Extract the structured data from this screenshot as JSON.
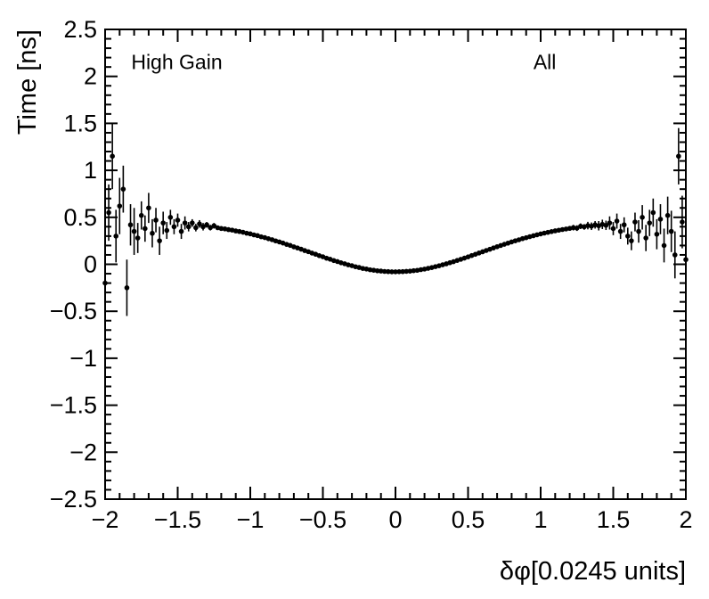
{
  "chart_data": {
    "type": "scatter",
    "title": "",
    "xlabel": "δφ[0.0245 units]",
    "ylabel": "Time [ns]",
    "xlim": [
      -2,
      2
    ],
    "ylim": [
      -2.5,
      2.5
    ],
    "grid": false,
    "legend": null,
    "marker_color": "#000000",
    "marker_style": "filled-circle-with-error-bars",
    "x_major_ticks": [
      -2,
      -1.5,
      -1,
      -0.5,
      0,
      0.5,
      1,
      1.5,
      2
    ],
    "x_tick_labels": [
      "−2",
      "−1.5",
      "−1",
      "−0.5",
      "0",
      "0.5",
      "1",
      "1.5",
      "2"
    ],
    "y_major_ticks": [
      -2.5,
      -2,
      -1.5,
      -1,
      -0.5,
      0,
      0.5,
      1,
      1.5,
      2,
      2.5
    ],
    "y_tick_labels": [
      "−2.5",
      "−2",
      "−1.5",
      "−1",
      "−0.5",
      "0",
      "0.5",
      "1",
      "1.5",
      "2",
      "2.5"
    ],
    "x_minor_step": 0.1,
    "y_minor_step": 0.1,
    "annotations": [
      {
        "text": "High Gain",
        "x": -1.82,
        "y": 2.08
      },
      {
        "text": "All",
        "x": 0.95,
        "y": 2.08
      }
    ],
    "points_format": [
      "x",
      "y",
      "yerr"
    ],
    "points": [
      [
        -2.0,
        -0.2,
        0.25
      ],
      [
        -1.975,
        0.55,
        0.3
      ],
      [
        -1.95,
        1.15,
        0.35
      ],
      [
        -1.925,
        0.3,
        0.28
      ],
      [
        -1.9,
        0.62,
        0.3
      ],
      [
        -1.875,
        0.8,
        0.25
      ],
      [
        -1.85,
        -0.25,
        0.3
      ],
      [
        -1.825,
        0.42,
        0.22
      ],
      [
        -1.8,
        0.35,
        0.25
      ],
      [
        -1.775,
        0.28,
        0.16
      ],
      [
        -1.75,
        0.52,
        0.15
      ],
      [
        -1.725,
        0.38,
        0.14
      ],
      [
        -1.7,
        0.6,
        0.16
      ],
      [
        -1.675,
        0.33,
        0.15
      ],
      [
        -1.65,
        0.47,
        0.13
      ],
      [
        -1.625,
        0.25,
        0.15
      ],
      [
        -1.6,
        0.44,
        0.12
      ],
      [
        -1.575,
        0.36,
        0.09
      ],
      [
        -1.55,
        0.5,
        0.08
      ],
      [
        -1.525,
        0.4,
        0.08
      ],
      [
        -1.5,
        0.47,
        0.07
      ],
      [
        -1.475,
        0.35,
        0.08
      ],
      [
        -1.45,
        0.44,
        0.07
      ],
      [
        -1.425,
        0.4,
        0.05
      ],
      [
        -1.4,
        0.44,
        0.04
      ],
      [
        -1.375,
        0.39,
        0.04
      ],
      [
        -1.35,
        0.43,
        0.04
      ],
      [
        -1.325,
        0.4,
        0.04
      ],
      [
        -1.3,
        0.42,
        0.03
      ],
      [
        -1.275,
        0.39,
        0.03
      ],
      [
        -1.25,
        0.41,
        0.03
      ],
      [
        -1.225,
        0.389,
        0.02
      ],
      [
        -1.2,
        0.381,
        0.02
      ],
      [
        -1.175,
        0.377,
        0.02
      ],
      [
        -1.15,
        0.369,
        0.02
      ],
      [
        -1.125,
        0.364,
        0.02
      ],
      [
        -1.1,
        0.355,
        0.02
      ],
      [
        -1.075,
        0.349,
        0.02
      ],
      [
        -1.05,
        0.341,
        0.02
      ],
      [
        -1.025,
        0.331,
        0.02
      ],
      [
        -1.0,
        0.324,
        0.02
      ],
      [
        -0.975,
        0.313,
        0.02
      ],
      [
        -0.95,
        0.305,
        0.02
      ],
      [
        -0.925,
        0.293,
        0.02
      ],
      [
        -0.9,
        0.284,
        0.02
      ],
      [
        -0.875,
        0.272,
        0.02
      ],
      [
        -0.85,
        0.262,
        0.02
      ],
      [
        -0.825,
        0.249,
        0.02
      ],
      [
        -0.8,
        0.238,
        0.02
      ],
      [
        -0.775,
        0.226,
        0.02
      ],
      [
        -0.75,
        0.212,
        0.02
      ],
      [
        -0.725,
        0.201,
        0.02
      ],
      [
        -0.7,
        0.186,
        0.02
      ],
      [
        -0.675,
        0.174,
        0.02
      ],
      [
        -0.65,
        0.161,
        0.02
      ],
      [
        -0.625,
        0.146,
        0.02
      ],
      [
        -0.6,
        0.134,
        0.02
      ],
      [
        -0.575,
        0.119,
        0.02
      ],
      [
        -0.55,
        0.107,
        0.02
      ],
      [
        -0.525,
        0.092,
        0.02
      ],
      [
        -0.5,
        0.08,
        0.02
      ],
      [
        -0.475,
        0.065,
        0.02
      ],
      [
        -0.45,
        0.054,
        0.02
      ],
      [
        -0.425,
        0.04,
        0.02
      ],
      [
        -0.4,
        0.029,
        0.02
      ],
      [
        -0.375,
        0.016,
        0.02
      ],
      [
        -0.35,
        0.006,
        0.02
      ],
      [
        -0.325,
        -0.006,
        0.02
      ],
      [
        -0.3,
        -0.015,
        0.02
      ],
      [
        -0.275,
        -0.026,
        0.02
      ],
      [
        -0.25,
        -0.034,
        0.02
      ],
      [
        -0.225,
        -0.044,
        0.02
      ],
      [
        -0.2,
        -0.05,
        0.02
      ],
      [
        -0.175,
        -0.058,
        0.02
      ],
      [
        -0.15,
        -0.063,
        0.02
      ],
      [
        -0.125,
        -0.069,
        0.02
      ],
      [
        -0.1,
        -0.072,
        0.02
      ],
      [
        -0.075,
        -0.076,
        0.02
      ],
      [
        -0.05,
        -0.078,
        0.02
      ],
      [
        -0.025,
        -0.08,
        0.02
      ],
      [
        0.0,
        -0.08,
        0.02
      ],
      [
        0.025,
        -0.079,
        0.02
      ],
      [
        0.05,
        -0.078,
        0.02
      ],
      [
        0.075,
        -0.075,
        0.02
      ],
      [
        0.1,
        -0.073,
        0.02
      ],
      [
        0.125,
        -0.068,
        0.02
      ],
      [
        0.15,
        -0.064,
        0.02
      ],
      [
        0.175,
        -0.057,
        0.02
      ],
      [
        0.2,
        -0.051,
        0.02
      ],
      [
        0.225,
        -0.043,
        0.02
      ],
      [
        0.25,
        -0.035,
        0.02
      ],
      [
        0.275,
        -0.025,
        0.02
      ],
      [
        0.3,
        -0.016,
        0.02
      ],
      [
        0.325,
        -0.005,
        0.02
      ],
      [
        0.35,
        0.005,
        0.02
      ],
      [
        0.375,
        0.017,
        0.02
      ],
      [
        0.4,
        0.028,
        0.02
      ],
      [
        0.425,
        0.041,
        0.02
      ],
      [
        0.45,
        0.053,
        0.02
      ],
      [
        0.475,
        0.066,
        0.02
      ],
      [
        0.5,
        0.079,
        0.02
      ],
      [
        0.525,
        0.093,
        0.02
      ],
      [
        0.55,
        0.106,
        0.02
      ],
      [
        0.575,
        0.12,
        0.02
      ],
      [
        0.6,
        0.133,
        0.02
      ],
      [
        0.625,
        0.147,
        0.02
      ],
      [
        0.65,
        0.16,
        0.02
      ],
      [
        0.675,
        0.174,
        0.02
      ],
      [
        0.7,
        0.187,
        0.02
      ],
      [
        0.725,
        0.2,
        0.02
      ],
      [
        0.75,
        0.213,
        0.02
      ],
      [
        0.775,
        0.225,
        0.02
      ],
      [
        0.8,
        0.238,
        0.02
      ],
      [
        0.825,
        0.25,
        0.02
      ],
      [
        0.85,
        0.261,
        0.02
      ],
      [
        0.875,
        0.273,
        0.02
      ],
      [
        0.9,
        0.283,
        0.02
      ],
      [
        0.925,
        0.294,
        0.02
      ],
      [
        0.95,
        0.304,
        0.02
      ],
      [
        0.975,
        0.314,
        0.02
      ],
      [
        1.0,
        0.323,
        0.02
      ],
      [
        1.025,
        0.332,
        0.02
      ],
      [
        1.05,
        0.34,
        0.02
      ],
      [
        1.075,
        0.348,
        0.02
      ],
      [
        1.1,
        0.356,
        0.02
      ],
      [
        1.125,
        0.363,
        0.02
      ],
      [
        1.15,
        0.37,
        0.02
      ],
      [
        1.175,
        0.376,
        0.02
      ],
      [
        1.2,
        0.382,
        0.02
      ],
      [
        1.225,
        0.39,
        0.03
      ],
      [
        1.25,
        0.385,
        0.03
      ],
      [
        1.275,
        0.405,
        0.03
      ],
      [
        1.3,
        0.398,
        0.03
      ],
      [
        1.325,
        0.412,
        0.04
      ],
      [
        1.35,
        0.405,
        0.04
      ],
      [
        1.375,
        0.42,
        0.04
      ],
      [
        1.4,
        0.41,
        0.05
      ],
      [
        1.425,
        0.425,
        0.05
      ],
      [
        1.45,
        0.415,
        0.05
      ],
      [
        1.475,
        0.44,
        0.07
      ],
      [
        1.5,
        0.38,
        0.07
      ],
      [
        1.525,
        0.46,
        0.08
      ],
      [
        1.55,
        0.35,
        0.08
      ],
      [
        1.575,
        0.42,
        0.08
      ],
      [
        1.6,
        0.3,
        0.09
      ],
      [
        1.625,
        0.25,
        0.1
      ],
      [
        1.65,
        0.45,
        0.1
      ],
      [
        1.675,
        0.35,
        0.12
      ],
      [
        1.7,
        0.5,
        0.13
      ],
      [
        1.725,
        0.28,
        0.14
      ],
      [
        1.75,
        0.44,
        0.14
      ],
      [
        1.775,
        0.55,
        0.15
      ],
      [
        1.8,
        0.32,
        0.16
      ],
      [
        1.825,
        0.48,
        0.16
      ],
      [
        1.85,
        0.2,
        0.18
      ],
      [
        1.875,
        0.52,
        0.2
      ],
      [
        1.9,
        0.35,
        0.22
      ],
      [
        1.925,
        0.1,
        0.25
      ],
      [
        1.95,
        1.15,
        0.3
      ],
      [
        1.975,
        0.45,
        0.28
      ],
      [
        2.0,
        0.05,
        0.3
      ]
    ]
  }
}
